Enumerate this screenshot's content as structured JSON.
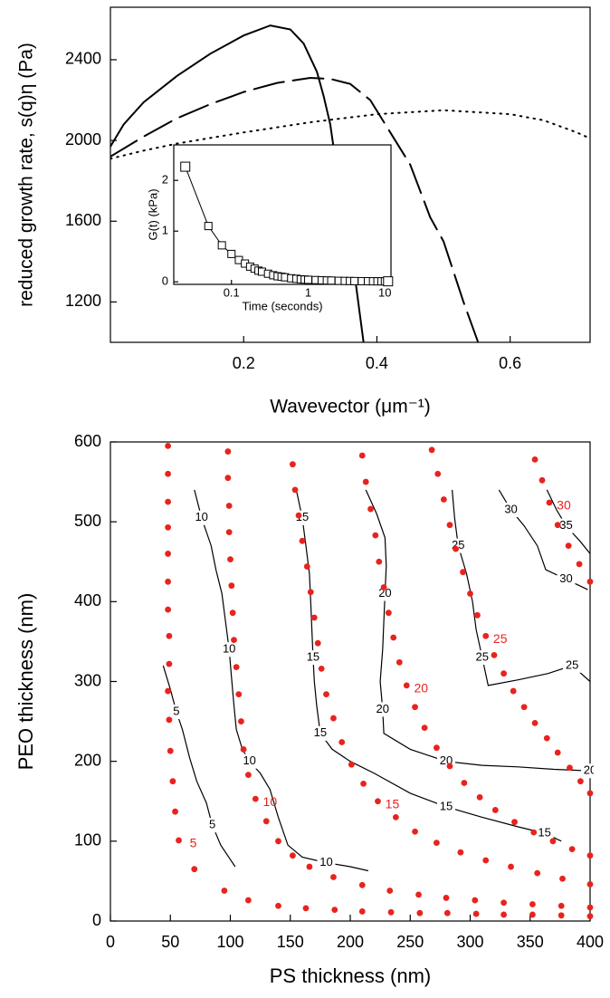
{
  "chart_data": [
    {
      "type": "line",
      "x_label": "Wavevector (μm⁻¹)",
      "y_label": "reduced growth rate, s(q)η (Pa)",
      "xlim": [
        0,
        0.72
      ],
      "ylim": [
        1000,
        2660
      ],
      "xticks": [
        0.2,
        0.4,
        0.6
      ],
      "yticks": [
        1200,
        1600,
        2000,
        2400
      ],
      "series": [
        {
          "style": "solid",
          "color": "#000000",
          "x": [
            0,
            0.02,
            0.05,
            0.1,
            0.15,
            0.2,
            0.24,
            0.27,
            0.29,
            0.31,
            0.32,
            0.33,
            0.34,
            0.36,
            0.38
          ],
          "y": [
            1970,
            2080,
            2190,
            2320,
            2430,
            2520,
            2570,
            2550,
            2480,
            2340,
            2220,
            2080,
            1850,
            1500,
            1000
          ]
        },
        {
          "style": "dashed",
          "color": "#000000",
          "x": [
            0,
            0.05,
            0.1,
            0.15,
            0.2,
            0.25,
            0.3,
            0.33,
            0.36,
            0.39,
            0.42,
            0.45,
            0.48,
            0.5,
            0.53,
            0.552
          ],
          "y": [
            1920,
            2020,
            2110,
            2180,
            2240,
            2285,
            2310,
            2305,
            2280,
            2200,
            2040,
            1880,
            1620,
            1500,
            1200,
            1000
          ]
        },
        {
          "style": "dotted",
          "color": "#000000",
          "x": [
            0,
            0.05,
            0.1,
            0.2,
            0.3,
            0.4,
            0.5,
            0.6,
            0.65,
            0.7,
            0.72
          ],
          "y": [
            1910,
            1950,
            1985,
            2040,
            2090,
            2130,
            2150,
            2130,
            2100,
            2040,
            2010
          ]
        }
      ]
    },
    {
      "type": "scatter",
      "x_label": "Time (seconds)",
      "y_label": "G(t)  (kPa)",
      "xlog": true,
      "xlim": [
        0.0177,
        12
      ],
      "ylim": [
        -0.05,
        2.7
      ],
      "xticks": [
        0.1,
        1,
        10
      ],
      "yticks": [
        0,
        1,
        2
      ],
      "marker": "square",
      "color": "#000000",
      "x": [
        0.025,
        0.05,
        0.075,
        0.1,
        0.125,
        0.15,
        0.175,
        0.2,
        0.225,
        0.25,
        0.3,
        0.35,
        0.4,
        0.45,
        0.5,
        0.6,
        0.7,
        0.8,
        0.9,
        1,
        1.25,
        1.5,
        1.75,
        2,
        2.5,
        3,
        3.5,
        4,
        5,
        6,
        7,
        8,
        9,
        10,
        11
      ],
      "y": [
        2.27,
        1.1,
        0.72,
        0.55,
        0.43,
        0.36,
        0.3,
        0.26,
        0.22,
        0.2,
        0.16,
        0.13,
        0.11,
        0.1,
        0.09,
        0.07,
        0.06,
        0.05,
        0.045,
        0.04,
        0.035,
        0.03,
        0.027,
        0.025,
        0.02,
        0.018,
        0.016,
        0.015,
        0.013,
        0.012,
        0.011,
        0.01,
        0.01,
        0.01,
        0.01
      ]
    },
    {
      "type": "contour",
      "x_label": "PS thickness (nm)",
      "y_label": "PEO thickness (nm)",
      "xlim": [
        0,
        400
      ],
      "ylim": [
        0,
        600
      ],
      "xticks": [
        0,
        50,
        100,
        150,
        200,
        250,
        300,
        350,
        400
      ],
      "yticks": [
        0,
        100,
        200,
        300,
        400,
        500,
        600
      ],
      "contours": [
        {
          "level": 5,
          "color": "#000000",
          "x": [
            44,
            50,
            55,
            60,
            66,
            72,
            80,
            85,
            92,
            104
          ],
          "y": [
            320,
            290,
            262,
            240,
            205,
            175,
            148,
            120,
            95,
            68
          ]
        },
        {
          "level": 10,
          "color": "#000000",
          "x": [
            70,
            76,
            84,
            88,
            93,
            96,
            99,
            101,
            103,
            105,
            110,
            116,
            125,
            133,
            140,
            148,
            160,
            180,
            200,
            215
          ],
          "y": [
            540,
            505,
            470,
            440,
            410,
            375,
            340,
            305,
            270,
            240,
            215,
            200,
            185,
            165,
            130,
            95,
            80,
            73,
            68,
            63
          ]
        },
        {
          "level": 15,
          "color": "#000000",
          "x": [
            155,
            160,
            163,
            166,
            167,
            168,
            169,
            170,
            172,
            175,
            185,
            200,
            220,
            250,
            280,
            310,
            340,
            362,
            376
          ],
          "y": [
            540,
            505,
            470,
            435,
            400,
            365,
            330,
            300,
            270,
            235,
            215,
            200,
            185,
            160,
            143,
            130,
            118,
            110,
            100
          ]
        },
        {
          "level": 20,
          "color": "#000000",
          "x": [
            213,
            222,
            229,
            230,
            229,
            228,
            227,
            225,
            227,
            228,
            250,
            280,
            310,
            340,
            370,
            400
          ],
          "y": [
            540,
            510,
            480,
            445,
            410,
            375,
            340,
            300,
            265,
            235,
            215,
            200,
            195,
            193,
            190,
            188
          ]
        },
        {
          "level": 25,
          "color": "#000000",
          "x": [
            285,
            287,
            290,
            297,
            302,
            305,
            310,
            315,
            340,
            365,
            385,
            400
          ],
          "y": [
            540,
            505,
            470,
            435,
            400,
            365,
            330,
            295,
            302,
            310,
            320,
            300
          ]
        },
        {
          "level": 30,
          "color": "#000000",
          "x": [
            324,
            334,
            345,
            356,
            363,
            380,
            398
          ],
          "y": [
            540,
            515,
            495,
            470,
            440,
            428,
            415
          ]
        },
        {
          "level": 35,
          "color": "#000000",
          "x": [
            364,
            372,
            380,
            392,
            400
          ],
          "y": [
            540,
            515,
            495,
            475,
            460
          ]
        }
      ],
      "points": [
        {
          "label": "5",
          "color": "#e8231f",
          "x": [
            48,
            48,
            48,
            48,
            48,
            48,
            48,
            49,
            49,
            48,
            49,
            50,
            52,
            54,
            57,
            70,
            95,
            115,
            140,
            163,
            187,
            210,
            234,
            258,
            281,
            305,
            328,
            352,
            376,
            400
          ],
          "y": [
            595,
            560,
            525,
            493,
            460,
            425,
            390,
            357,
            322,
            288,
            252,
            213,
            175,
            137,
            101,
            65,
            38,
            26,
            19,
            16,
            14,
            12,
            11,
            10,
            10,
            9,
            8,
            8,
            7,
            6
          ]
        },
        {
          "label": "10",
          "color": "#e8231f",
          "x": [
            98,
            98,
            99,
            99,
            100,
            101,
            102,
            103,
            105,
            107,
            109,
            111,
            115,
            121,
            130,
            140,
            152,
            166,
            186,
            210,
            233,
            257,
            280,
            304,
            328,
            352,
            376,
            400
          ],
          "y": [
            588,
            555,
            520,
            487,
            453,
            420,
            386,
            352,
            318,
            284,
            250,
            215,
            183,
            153,
            125,
            100,
            82,
            68,
            55,
            45,
            38,
            33,
            29,
            26,
            23,
            21,
            19,
            17
          ]
        },
        {
          "label": "15",
          "color": "#e8231f",
          "x": [
            152,
            154,
            157,
            160,
            164,
            167,
            170,
            173,
            176,
            180,
            186,
            193,
            201,
            211,
            223,
            238,
            254,
            272,
            292,
            313,
            334,
            356,
            377,
            400
          ],
          "y": [
            572,
            540,
            508,
            476,
            444,
            412,
            380,
            348,
            316,
            284,
            254,
            224,
            196,
            172,
            150,
            130,
            112,
            98,
            86,
            76,
            68,
            60,
            53,
            46
          ]
        },
        {
          "label": "20",
          "color": "#e8231f",
          "x": [
            210,
            213,
            217,
            221,
            224,
            228,
            232,
            236,
            241,
            247,
            254,
            262,
            272,
            283,
            295,
            308,
            321,
            337,
            353,
            369,
            385,
            400
          ],
          "y": [
            583,
            550,
            516,
            483,
            450,
            418,
            386,
            355,
            324,
            295,
            268,
            242,
            217,
            194,
            173,
            155,
            139,
            124,
            111,
            100,
            90,
            82
          ]
        },
        {
          "label": "25",
          "color": "#e8231f",
          "x": [
            268,
            273,
            278,
            283,
            288,
            294,
            300,
            306,
            313,
            320,
            328,
            336,
            345,
            354,
            364,
            373,
            383,
            392,
            400
          ],
          "y": [
            590,
            560,
            528,
            496,
            466,
            437,
            410,
            383,
            357,
            333,
            310,
            288,
            268,
            248,
            229,
            211,
            192,
            175,
            160
          ]
        },
        {
          "label": "30",
          "color": "#e8231f",
          "x": [
            354,
            360,
            366,
            373,
            382,
            391,
            400
          ],
          "y": [
            578,
            552,
            524,
            496,
            470,
            447,
            425
          ]
        }
      ]
    }
  ]
}
